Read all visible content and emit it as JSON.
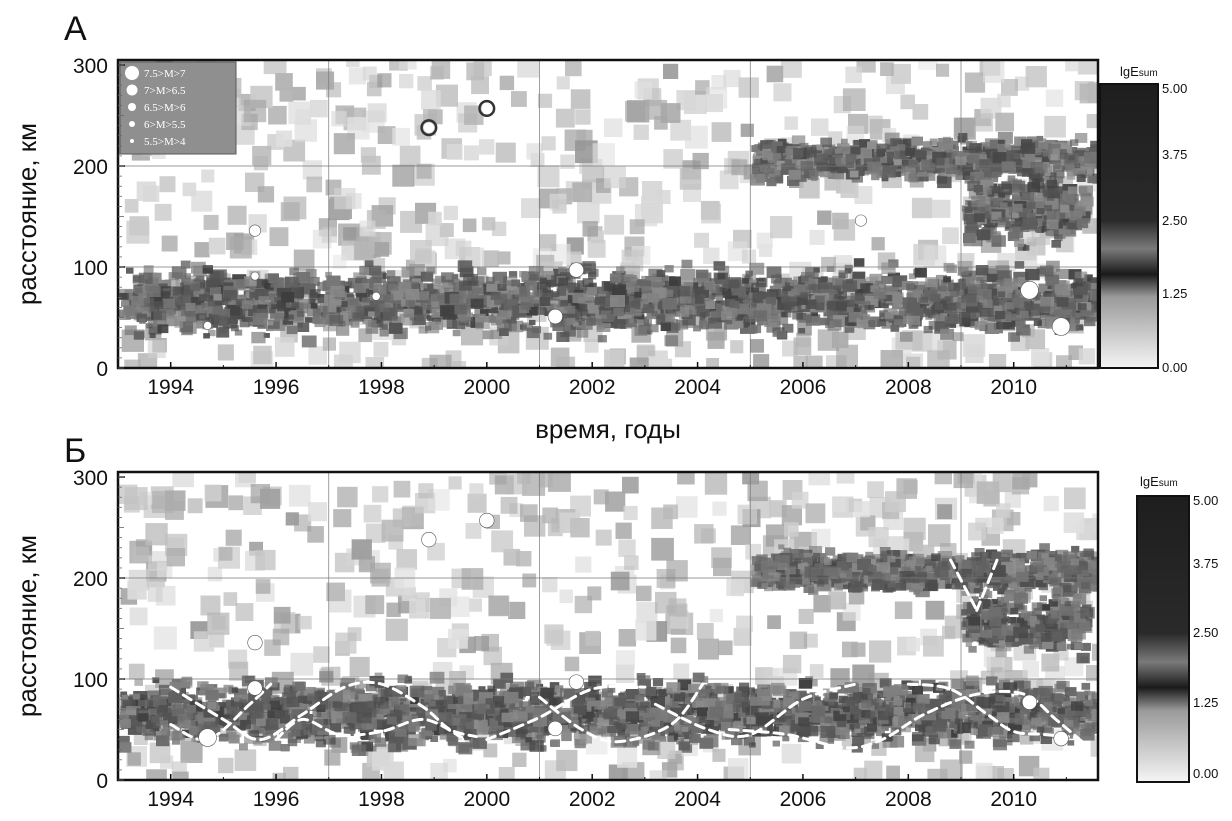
{
  "chart_data": [
    {
      "type": "heatmap",
      "panel_label": "А",
      "title": "",
      "xlabel": "время, годы",
      "ylabel": "расстояние, км",
      "xlim": [
        1993,
        2011.6
      ],
      "ylim": [
        0,
        305
      ],
      "x_ticks": [
        1994,
        1996,
        1998,
        2000,
        2002,
        2004,
        2006,
        2008,
        2010
      ],
      "x_tick_labels": [
        "1994",
        "1996",
        "1998",
        "2000",
        "2002",
        "2004",
        "2006",
        "2008",
        "2010"
      ],
      "y_ticks": [
        0,
        100,
        200,
        300
      ],
      "y_tick_labels": [
        "0",
        "100",
        "200",
        "300"
      ],
      "grid": true,
      "colorbar": {
        "title_main": "lgE",
        "title_sub": "sum",
        "min": 0,
        "max": 5,
        "ticks": [
          0,
          1.25,
          2.5,
          3.75,
          5
        ],
        "tick_labels": [
          "0.00",
          "1.25",
          "2.50",
          "3.75",
          "5.00"
        ],
        "scale": "grayscale, light = low, dark = high"
      },
      "legend": {
        "placement": "top-left",
        "entries": [
          {
            "label": "7.5>M>7",
            "size": 5
          },
          {
            "label": "7>M>6.5",
            "size": 4
          },
          {
            "label": "6.5>M>6",
            "size": 3
          },
          {
            "label": "6>M>5.5",
            "size": 2
          },
          {
            "label": "5.5>M>4",
            "size": 1
          }
        ]
      },
      "bands": [
        {
          "x0": 1993.0,
          "x1": 2011.5,
          "y_center": 65,
          "half_width": 35,
          "intensity": 4.3
        },
        {
          "x0": 2005.0,
          "x1": 2011.5,
          "y_center": 205,
          "half_width": 22,
          "intensity": 4.1
        },
        {
          "x0": 2009.0,
          "x1": 2011.3,
          "y_center": 155,
          "half_width": 35,
          "intensity": 4.3
        }
      ],
      "earthquakes": [
        {
          "year": 1994.7,
          "distance": 42,
          "size": 1
        },
        {
          "year": 1995.6,
          "distance": 136,
          "size": 2
        },
        {
          "year": 1995.6,
          "distance": 91,
          "size": 1
        },
        {
          "year": 1997.9,
          "distance": 71,
          "size": 1
        },
        {
          "year": 1998.9,
          "distance": 238,
          "size": 3,
          "ring": true
        },
        {
          "year": 2000.0,
          "distance": 257,
          "size": 3,
          "ring": true
        },
        {
          "year": 2001.3,
          "distance": 51,
          "size": 3
        },
        {
          "year": 2001.7,
          "distance": 97,
          "size": 3
        },
        {
          "year": 2007.1,
          "distance": 146,
          "size": 2
        },
        {
          "year": 2010.3,
          "distance": 77,
          "size": 4
        },
        {
          "year": 2010.9,
          "distance": 41,
          "size": 4
        }
      ],
      "curves": []
    },
    {
      "type": "heatmap",
      "panel_label": "Б",
      "title": "",
      "xlabel": "",
      "ylabel": "расстояние, км",
      "xlim": [
        1993,
        2011.6
      ],
      "ylim": [
        0,
        305
      ],
      "x_ticks": [
        1994,
        1996,
        1998,
        2000,
        2002,
        2004,
        2006,
        2008,
        2010
      ],
      "x_tick_labels": [
        "1994",
        "1996",
        "1998",
        "2000",
        "2002",
        "2004",
        "2006",
        "2008",
        "2010"
      ],
      "y_ticks": [
        0,
        100,
        200,
        300
      ],
      "y_tick_labels": [
        "0",
        "100",
        "200",
        "300"
      ],
      "grid": true,
      "colorbar": {
        "title_main": "lgE",
        "title_sub": "sum",
        "min": 0,
        "max": 5,
        "ticks": [
          0,
          1.25,
          2.5,
          3.75,
          5
        ],
        "tick_labels": [
          "0.00",
          "1.25",
          "2.50",
          "3.75",
          "5.00"
        ],
        "scale": "grayscale, light = low, dark = high"
      },
      "legend": null,
      "bands": [
        {
          "x0": 1993.0,
          "x1": 2011.5,
          "y_center": 65,
          "half_width": 35,
          "intensity": 4.3
        },
        {
          "x0": 2005.0,
          "x1": 2011.5,
          "y_center": 205,
          "half_width": 22,
          "intensity": 4.1
        },
        {
          "x0": 2009.0,
          "x1": 2011.3,
          "y_center": 155,
          "half_width": 35,
          "intensity": 4.3
        }
      ],
      "earthquakes": [
        {
          "year": 1994.7,
          "distance": 42,
          "size": 4
        },
        {
          "year": 1995.6,
          "distance": 136,
          "size": 3
        },
        {
          "year": 1995.6,
          "distance": 91,
          "size": 3
        },
        {
          "year": 1998.9,
          "distance": 238,
          "size": 3
        },
        {
          "year": 2000.0,
          "distance": 257,
          "size": 3
        },
        {
          "year": 2001.3,
          "distance": 51,
          "size": 3
        },
        {
          "year": 2001.7,
          "distance": 97,
          "size": 3
        },
        {
          "year": 2010.3,
          "distance": 77,
          "size": 3
        },
        {
          "year": 2010.9,
          "distance": 41,
          "size": 3
        }
      ],
      "curves": [
        {
          "points": [
            [
              1994.0,
              92
            ],
            [
              1995.0,
              60
            ],
            [
              1995.7,
              40
            ],
            [
              1996.5,
              65
            ],
            [
              1997.3,
              92
            ],
            [
              1998.0,
              95
            ],
            [
              1998.8,
              72
            ],
            [
              1999.3,
              50
            ],
            [
              1999.8,
              43
            ]
          ]
        },
        {
          "points": [
            [
              1994.0,
              55
            ],
            [
              1994.7,
              40
            ],
            [
              1995.5,
              75
            ],
            [
              1995.9,
              95
            ]
          ]
        },
        {
          "points": [
            [
              1996.0,
              40
            ],
            [
              1996.5,
              60
            ],
            [
              1997.2,
              45
            ],
            [
              1998.0,
              48
            ],
            [
              1998.8,
              60
            ],
            [
              1999.5,
              43
            ]
          ]
        },
        {
          "points": [
            [
              2000.0,
              40
            ],
            [
              2001.0,
              62
            ],
            [
              2002.0,
              90
            ],
            [
              2003.0,
              92
            ]
          ]
        },
        {
          "points": [
            [
              2001.0,
              82
            ],
            [
              2001.8,
              50
            ],
            [
              2002.5,
              38
            ],
            [
              2003.5,
              55
            ],
            [
              2004.1,
              95
            ]
          ]
        },
        {
          "points": [
            [
              2003.2,
              75
            ],
            [
              2004.2,
              50
            ],
            [
              2005.0,
              45
            ],
            [
              2006.0,
              80
            ],
            [
              2007.0,
              95
            ]
          ]
        },
        {
          "points": [
            [
              2004.6,
              50
            ],
            [
              2005.7,
              45
            ],
            [
              2006.8,
              32
            ],
            [
              2007.5,
              40
            ],
            [
              2008.3,
              65
            ],
            [
              2009.3,
              85
            ],
            [
              2010.2,
              85
            ],
            [
              2010.8,
              60
            ],
            [
              2011.3,
              38
            ]
          ]
        },
        {
          "points": [
            [
              2008.0,
              95
            ],
            [
              2008.8,
              90
            ],
            [
              2009.5,
              65
            ],
            [
              2010.0,
              48
            ],
            [
              2010.6,
              45
            ],
            [
              2011.2,
              42
            ]
          ]
        },
        {
          "points": [
            [
              2008.8,
              218
            ],
            [
              2009.3,
              168
            ]
          ]
        },
        {
          "points": [
            [
              2009.3,
              168
            ],
            [
              2009.7,
              220
            ]
          ]
        }
      ]
    }
  ]
}
